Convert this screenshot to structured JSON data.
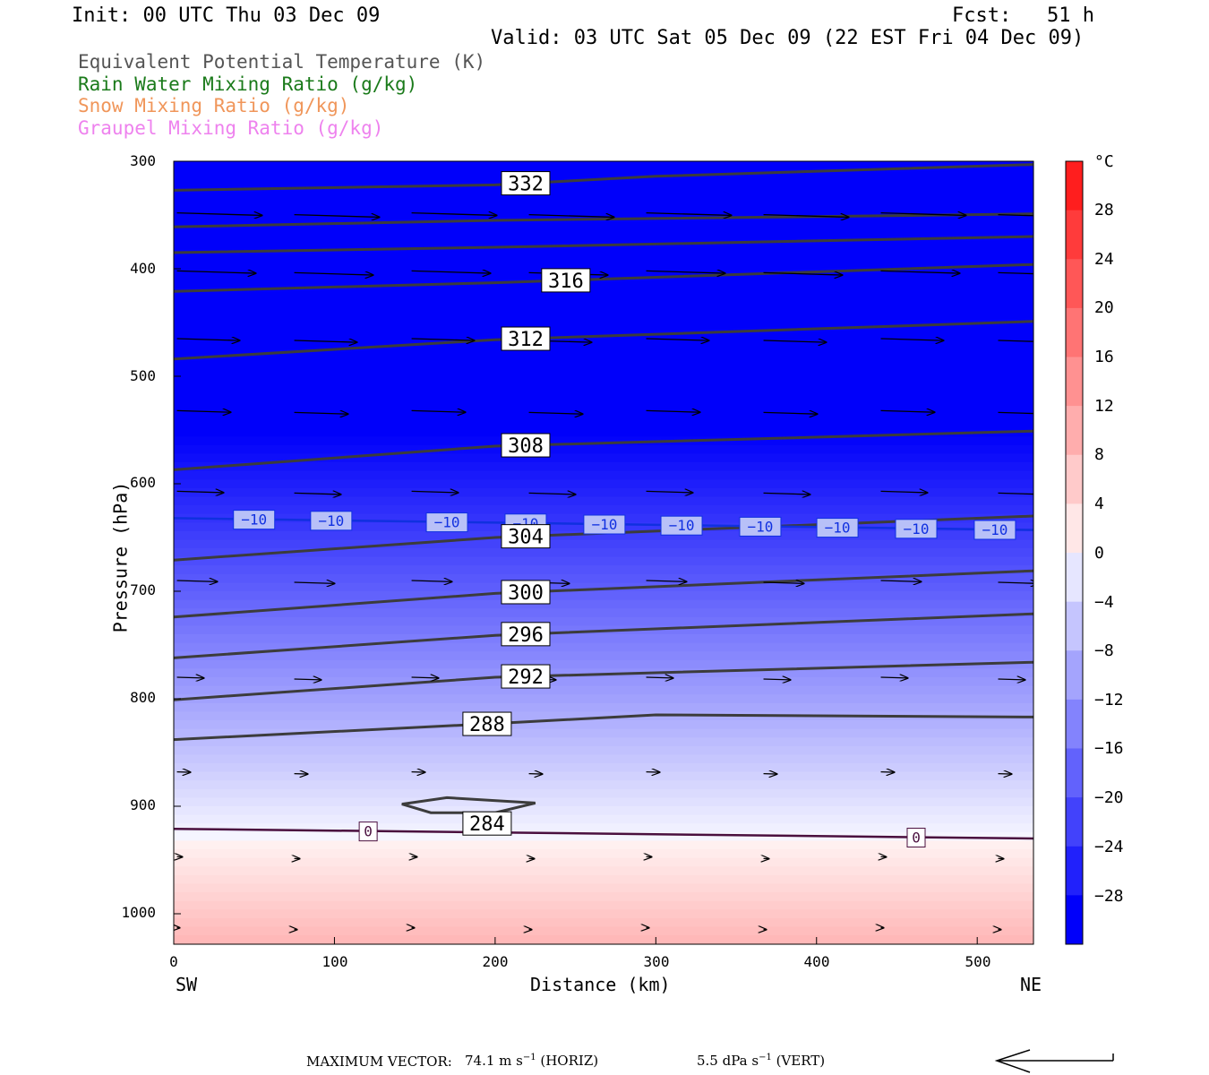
{
  "header": {
    "init": "Init: 00 UTC Thu 03 Dec 09",
    "fcst": "Fcst:   51 h",
    "valid": "Valid: 03 UTC Sat 05 Dec 09 (22 EST Fri 04 Dec 09)"
  },
  "legend": {
    "theta_e": "Equivalent Potential Temperature (K)",
    "rain": "Rain Water Mixing Ratio (g/kg)",
    "snow": "Snow Mixing Ratio (g/kg)",
    "graupel": "Graupel Mixing Ratio (g/kg)",
    "colors": {
      "theta_e": "#555555",
      "rain": "#1a7a1a",
      "snow": "#f0965a",
      "graupel": "#ee82ee"
    }
  },
  "axes": {
    "ylabel": "Pressure (hPa)",
    "xlabel": "Distance (km)",
    "left_end": "SW",
    "right_end": "NE",
    "yticks": [
      "300",
      "400",
      "500",
      "600",
      "700",
      "800",
      "900",
      "1000"
    ],
    "xticks": [
      "0",
      "100",
      "200",
      "300",
      "400",
      "500"
    ]
  },
  "colorbar": {
    "unit": "°C",
    "labels": [
      "28",
      "24",
      "20",
      "16",
      "12",
      "8",
      "4",
      "0",
      "−4",
      "−8",
      "−12",
      "−16",
      "−20",
      "−24",
      "−28"
    ]
  },
  "footer": {
    "max_vector_label": "MAXIMUM VECTOR:",
    "horiz_value": "74.1 m s",
    "horiz_exp": "−1",
    "horiz_unit": " (HORIZ)",
    "vert_value": "5.5 dPa s",
    "vert_exp": "−1",
    "vert_unit": " (VERT)"
  },
  "chart_data": {
    "type": "cross-section contour",
    "x_range_km": [
      0,
      535
    ],
    "y_range_hpa": [
      300,
      1025
    ],
    "y_scale": "pressure (reversed)",
    "shaded_field": "temperature (°C)",
    "theta_e_contours": [
      {
        "label": "332",
        "points": [
          [
            0,
            327
          ],
          [
            200,
            322
          ],
          [
            300,
            314
          ],
          [
            535,
            303
          ]
        ]
      },
      {
        "label": "",
        "points": [
          [
            0,
            361
          ],
          [
            200,
            355
          ],
          [
            535,
            349
          ]
        ]
      },
      {
        "label": "",
        "points": [
          [
            0,
            385
          ],
          [
            200,
            380
          ],
          [
            535,
            370
          ]
        ]
      },
      {
        "label": "316",
        "points": [
          [
            0,
            421
          ],
          [
            200,
            413
          ],
          [
            535,
            396
          ]
        ]
      },
      {
        "label": "312",
        "points": [
          [
            0,
            484
          ],
          [
            200,
            466
          ],
          [
            535,
            449
          ]
        ]
      },
      {
        "label": "308",
        "points": [
          [
            0,
            587
          ],
          [
            200,
            565
          ],
          [
            535,
            551
          ]
        ]
      },
      {
        "label": "304",
        "points": [
          [
            0,
            671
          ],
          [
            200,
            650
          ],
          [
            535,
            630
          ]
        ]
      },
      {
        "label": "300",
        "points": [
          [
            0,
            724
          ],
          [
            200,
            702
          ],
          [
            535,
            681
          ]
        ]
      },
      {
        "label": "296",
        "points": [
          [
            0,
            762
          ],
          [
            200,
            741
          ],
          [
            535,
            721
          ]
        ]
      },
      {
        "label": "292",
        "points": [
          [
            0,
            801
          ],
          [
            200,
            780
          ],
          [
            535,
            766
          ]
        ]
      },
      {
        "label": "288",
        "points": [
          [
            0,
            838
          ],
          [
            200,
            823
          ],
          [
            300,
            815
          ],
          [
            535,
            817
          ]
        ]
      },
      {
        "label": "284",
        "points": [
          [
            142,
            898
          ],
          [
            170,
            892
          ],
          [
            225,
            897
          ],
          [
            200,
            906
          ],
          [
            160,
            906
          ]
        ]
      }
    ],
    "isotherms": [
      {
        "label": "−10",
        "pressure_hpa": [
          632,
          643
        ]
      },
      {
        "label": "0",
        "pressure_hpa": [
          921,
          930
        ]
      }
    ],
    "wind_rows_hpa": [
      348,
      402,
      465,
      532,
      607,
      690,
      780,
      868,
      947,
      1013
    ],
    "colorbar_range_c": [
      -32,
      32
    ]
  }
}
